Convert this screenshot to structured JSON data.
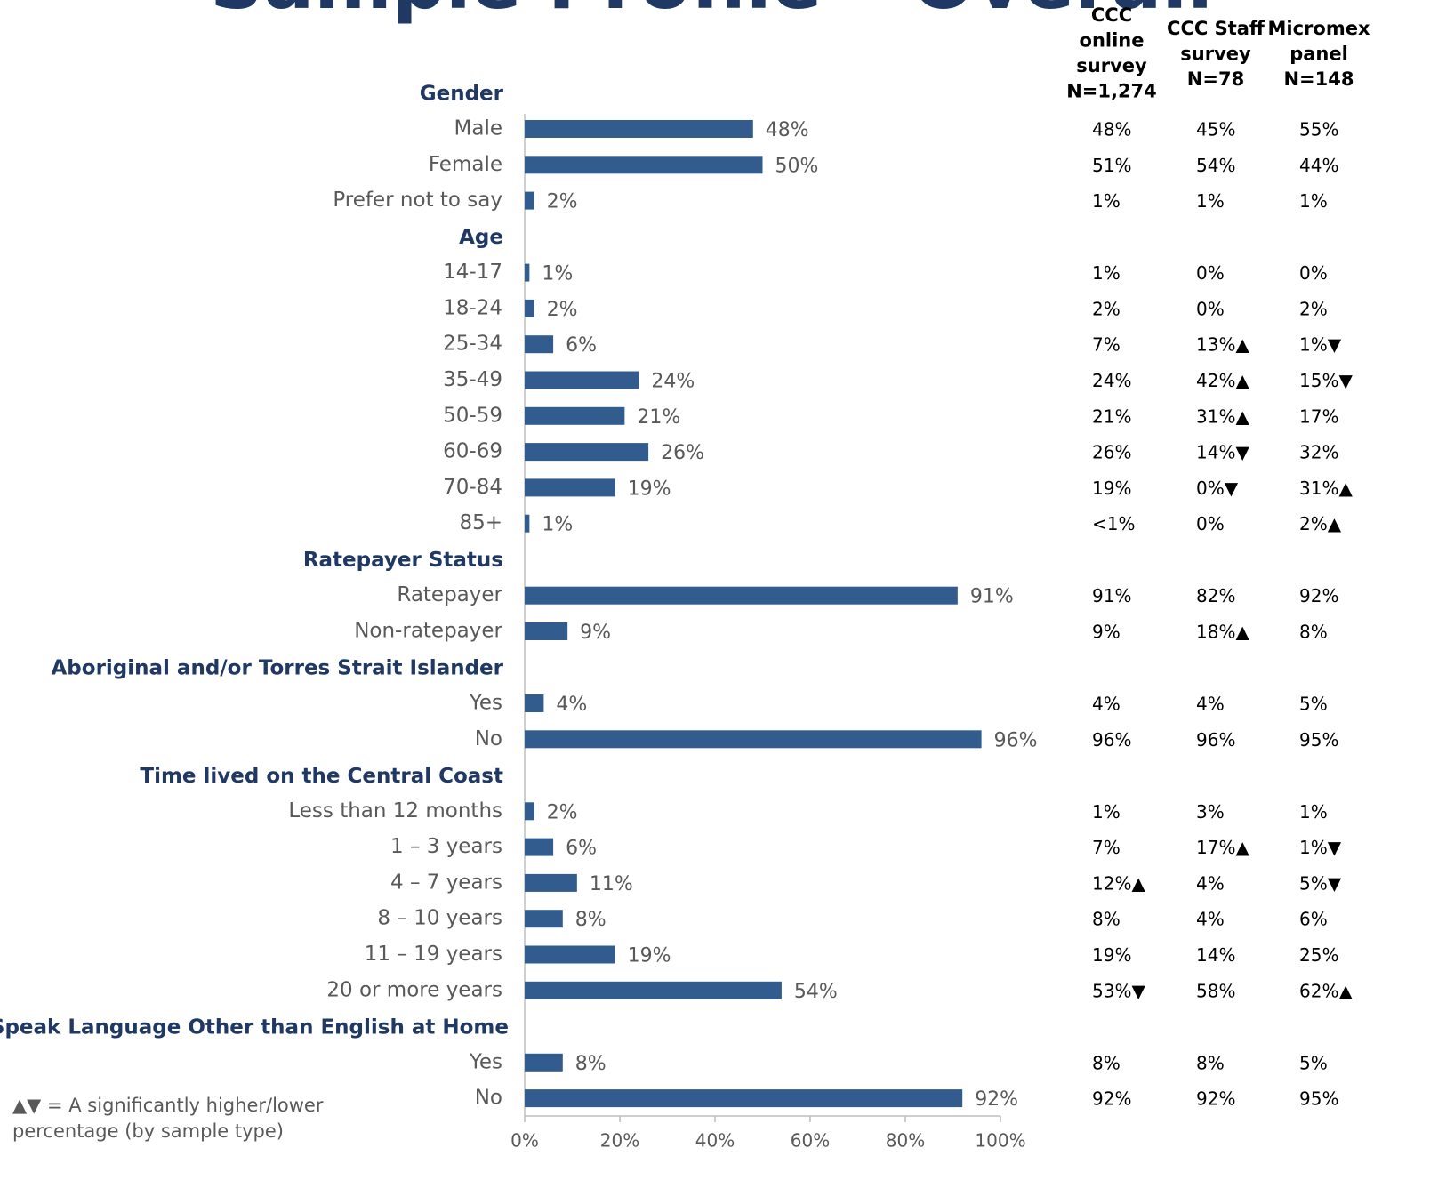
{
  "chart_data": {
    "type": "bar",
    "orientation": "horizontal",
    "title": "Sample Profile – Overall",
    "color": "#335c8e",
    "xlim": [
      0,
      100
    ],
    "xticks": [
      {
        "value": 0,
        "label": "0%"
      },
      {
        "value": 20,
        "label": "20%"
      },
      {
        "value": 40,
        "label": "40%"
      },
      {
        "value": 60,
        "label": "60%"
      },
      {
        "value": 80,
        "label": "80%"
      },
      {
        "value": 100,
        "label": "100%"
      }
    ],
    "groups": [
      {
        "name": "Gender",
        "categories": [
          "Male",
          "Female",
          "Prefer not to say"
        ],
        "values": [
          48,
          50,
          2
        ],
        "value_labels": [
          "48%",
          "50%",
          "2%"
        ]
      },
      {
        "name": "Age",
        "categories": [
          "14-17",
          "18-24",
          "25-34",
          "35-49",
          "50-59",
          "60-69",
          "70-84",
          "85+"
        ],
        "values": [
          1,
          2,
          6,
          24,
          21,
          26,
          19,
          1
        ],
        "value_labels": [
          "1%",
          "2%",
          "6%",
          "24%",
          "21%",
          "26%",
          "19%",
          "1%"
        ]
      },
      {
        "name": "Ratepayer Status",
        "categories": [
          "Ratepayer",
          "Non-ratepayer"
        ],
        "values": [
          91,
          9
        ],
        "value_labels": [
          "91%",
          "9%"
        ]
      },
      {
        "name": "Aboriginal and/or Torres Strait Islander",
        "categories": [
          "Yes",
          "No"
        ],
        "values": [
          4,
          96
        ],
        "value_labels": [
          "4%",
          "96%"
        ]
      },
      {
        "name": "Time lived on the Central Coast",
        "categories": [
          "Less than 12 months",
          "1 – 3 years",
          "4 – 7 years",
          "8 – 10 years",
          "11 – 19 years",
          "20 or more years"
        ],
        "values": [
          2,
          6,
          11,
          8,
          19,
          54
        ],
        "value_labels": [
          "2%",
          "6%",
          "11%",
          "8%",
          "19%",
          "54%"
        ]
      },
      {
        "name": "Speak Language Other than English at Home",
        "categories": [
          "Yes",
          "No"
        ],
        "values": [
          8,
          92
        ],
        "value_labels": [
          "8%",
          "92%"
        ]
      }
    ]
  },
  "table": {
    "columns": [
      [
        "CCC",
        "online",
        "survey",
        "N=1,274"
      ],
      [
        "CCC Staff",
        "survey",
        "N=78"
      ],
      [
        "Micromex",
        "panel",
        "N=148"
      ]
    ],
    "groups": [
      [
        [
          "48%",
          "45%",
          "55%"
        ],
        [
          "51%",
          "54%",
          "44%"
        ],
        [
          "1%",
          "1%",
          "1%"
        ]
      ],
      [
        [
          "1%",
          "0%",
          "0%"
        ],
        [
          "2%",
          "0%",
          "2%"
        ],
        [
          "7%",
          "13%▲",
          "1%▼"
        ],
        [
          "24%",
          "42%▲",
          "15%▼"
        ],
        [
          "21%",
          "31%▲",
          "17%"
        ],
        [
          "26%",
          "14%▼",
          "32%"
        ],
        [
          "19%",
          "0%▼",
          "31%▲"
        ],
        [
          "<1%",
          "0%",
          "2%▲"
        ]
      ],
      [
        [
          "91%",
          "82%",
          "92%"
        ],
        [
          "9%",
          "18%▲",
          "8%"
        ]
      ],
      [
        [
          "4%",
          "4%",
          "5%"
        ],
        [
          "96%",
          "96%",
          "95%"
        ]
      ],
      [
        [
          "1%",
          "3%",
          "1%"
        ],
        [
          "7%",
          "17%▲",
          "1%▼"
        ],
        [
          "12%▲",
          "4%",
          "5%▼"
        ],
        [
          "8%",
          "4%",
          "6%"
        ],
        [
          "19%",
          "14%",
          "25%"
        ],
        [
          "53%▼",
          "58%",
          "62%▲"
        ]
      ],
      [
        [
          "8%",
          "8%",
          "5%"
        ],
        [
          "92%",
          "92%",
          "95%"
        ]
      ]
    ]
  },
  "footnote": [
    "▲▼ = A significantly higher/lower",
    "percentage (by sample type)"
  ]
}
